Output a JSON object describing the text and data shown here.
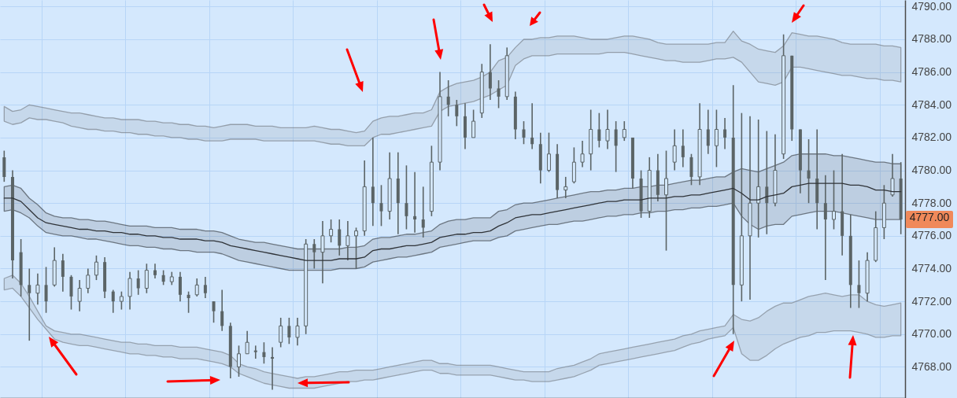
{
  "chart_data": {
    "type": "candlestick",
    "color": "#5b6466",
    "grid": true,
    "tick_labels": "y",
    "categories": [
      null,
      null,
      null,
      null,
      null,
      null,
      null,
      null,
      null,
      null,
      null,
      null,
      null,
      null,
      null,
      null,
      null,
      null,
      null,
      null,
      null,
      null,
      null,
      null,
      null,
      null,
      null,
      null,
      null,
      null,
      null,
      null,
      null,
      null,
      null,
      null,
      null,
      null,
      null,
      null,
      null,
      null,
      null,
      null,
      null,
      null,
      null,
      null,
      null,
      null,
      null,
      null,
      null,
      null,
      null,
      null,
      null,
      null,
      null,
      null,
      null,
      null,
      null,
      null,
      null,
      null,
      null,
      null,
      null,
      null,
      null,
      null,
      null,
      null,
      null,
      null,
      null,
      null,
      null,
      null,
      null,
      null,
      null,
      null,
      null,
      null,
      null,
      null,
      null,
      null,
      null,
      null,
      null,
      null,
      null,
      null,
      null,
      null,
      null,
      null,
      null,
      null,
      null,
      null,
      null,
      null,
      null,
      null
    ],
    "ylim": [
      4766.1,
      4790.4
    ],
    "yticks": [
      {
        "value": 4768,
        "label": "4768.00"
      },
      {
        "value": 4770,
        "label": "4770.00"
      },
      {
        "value": 4772,
        "label": "4772.00"
      },
      {
        "value": 4774,
        "label": "4774.00"
      },
      {
        "value": 4776,
        "label": "4776.00"
      },
      {
        "value": 4778,
        "label": "4778.00"
      },
      {
        "value": 4780,
        "label": "4780.00"
      },
      {
        "value": 4782,
        "label": "4782.00"
      },
      {
        "value": 4784,
        "label": "4784.00"
      },
      {
        "value": 4786,
        "label": "4786.00"
      },
      {
        "value": 4788,
        "label": "4788.00"
      },
      {
        "value": 4790,
        "label": "4790.00"
      }
    ],
    "ohlc": [
      [
        4780.8,
        4781.2,
        4779.3,
        4779.6
      ],
      [
        4779.6,
        4780,
        4773.4,
        4774.5
      ],
      [
        4775,
        4775.8,
        4772.3,
        4773
      ],
      [
        4773,
        4774,
        4769.6,
        4772.5
      ],
      [
        4772.5,
        4773.7,
        4771.8,
        4773
      ],
      [
        4773,
        4774.1,
        4771.3,
        4772
      ],
      [
        4773,
        4775.3,
        4772.9,
        4774.5
      ],
      [
        4774.5,
        4774.9,
        4772.6,
        4773.5
      ],
      [
        4773.5,
        4773.6,
        4771.5,
        4772.3
      ],
      [
        4772,
        4773.3,
        4771.4,
        4772.8
      ],
      [
        4772.8,
        4774,
        4772.5,
        4773.6
      ],
      [
        4773.6,
        4774.8,
        4773.3,
        4774.4
      ],
      [
        4774.4,
        4774.7,
        4772.2,
        4772.6
      ],
      [
        4772.6,
        4772.7,
        4771.3,
        4772
      ],
      [
        4772,
        4772.6,
        4771.5,
        4772.3
      ],
      [
        4772.3,
        4773.8,
        4771.5,
        4773.4
      ],
      [
        4773.4,
        4773.9,
        4772.4,
        4772.8
      ],
      [
        4772.8,
        4774.3,
        4772.5,
        4773.9
      ],
      [
        4773.9,
        4774.3,
        4773.4,
        4773.6
      ],
      [
        4773.6,
        4773.9,
        4773,
        4773.2
      ],
      [
        4773.2,
        4773.8,
        4773,
        4773.5
      ],
      [
        4773.5,
        4773.8,
        4772,
        4772.4
      ],
      [
        4772.4,
        4772.6,
        4771.3,
        4772.2
      ],
      [
        4772.4,
        4773.4,
        4772.3,
        4773
      ],
      [
        4773,
        4773.5,
        4772.2,
        4772.5
      ],
      [
        4772,
        4772,
        4770.7,
        4771.4
      ],
      [
        4771.4,
        4772.7,
        4770.2,
        4770.5
      ],
      [
        4770.5,
        4770.7,
        4767.3,
        4768
      ],
      [
        4768,
        4769.3,
        4767.4,
        4768.8
      ],
      [
        4768.8,
        4770.2,
        4768.8,
        4769.5
      ],
      [
        4769,
        4769.3,
        4768.5,
        4768.9
      ],
      [
        4768.9,
        4769.5,
        4768.2,
        4768.6
      ],
      [
        4768.6,
        4769.2,
        4766.6,
        4768.5
      ],
      [
        4769.5,
        4771,
        4769.2,
        4770.5
      ],
      [
        4770.5,
        4771,
        4769.4,
        4769.8
      ],
      [
        4769.8,
        4771,
        4769.3,
        4770.5
      ],
      [
        4770.5,
        4775.8,
        4770,
        4775.5
      ],
      [
        4775.5,
        4775.8,
        4774,
        4775
      ],
      [
        4775,
        4776.9,
        4773.1,
        4776
      ],
      [
        4776,
        4777,
        4775.6,
        4776.4
      ],
      [
        4776.4,
        4777,
        4774.8,
        4775.4
      ],
      [
        4775.4,
        4776.9,
        4774.5,
        4776
      ],
      [
        4776,
        4776.5,
        4774,
        4776.3
      ],
      [
        4776.3,
        4780.6,
        4776,
        4779
      ],
      [
        4779,
        4782,
        4776.6,
        4778
      ],
      [
        4778,
        4779.1,
        4776.6,
        4777.5
      ],
      [
        4777.5,
        4781.1,
        4777,
        4779.5
      ],
      [
        4779.5,
        4781.1,
        4776.1,
        4778
      ],
      [
        4778,
        4780.3,
        4776.4,
        4777.2
      ],
      [
        4777.2,
        4779.9,
        4776.2,
        4777
      ],
      [
        4777,
        4779,
        4775.9,
        4776.5
      ],
      [
        4777.5,
        4781.5,
        4777.2,
        4780.5
      ],
      [
        4780.5,
        4786,
        4780,
        4784.5
      ],
      [
        4784.5,
        4785.5,
        4783.3,
        4784
      ],
      [
        4784,
        4784.3,
        4782.7,
        4783.3
      ],
      [
        4783.3,
        4784.1,
        4781.3,
        4782
      ],
      [
        4782,
        4783.7,
        4782,
        4783
      ],
      [
        4783.5,
        4786.5,
        4783.2,
        4786
      ],
      [
        4786,
        4787.7,
        4784.3,
        4785
      ],
      [
        4785,
        4785.5,
        4783.8,
        4784.5
      ],
      [
        4784.5,
        4787.5,
        4784.3,
        4787
      ],
      [
        4784.5,
        4784.8,
        4781.9,
        4782.5
      ],
      [
        4782.5,
        4783,
        4781.6,
        4782
      ],
      [
        4782,
        4784.1,
        4781.3,
        4781.6
      ],
      [
        4781.6,
        4782.3,
        4779.2,
        4780
      ],
      [
        4780,
        4782.3,
        4779.9,
        4781
      ],
      [
        4781,
        4781.6,
        4778.3,
        4778.8
      ],
      [
        4778.8,
        4779.6,
        4778.3,
        4779
      ],
      [
        4779.3,
        4781.4,
        4779.2,
        4780.5
      ],
      [
        4780.5,
        4781.8,
        4780.2,
        4781
      ],
      [
        4781,
        4783.7,
        4780,
        4782.5
      ],
      [
        4782.5,
        4783.5,
        4781.4,
        4781.8
      ],
      [
        4781.8,
        4783.7,
        4781.3,
        4782.5
      ],
      [
        4782.5,
        4783,
        4779.9,
        4781.5
      ],
      [
        4782,
        4783,
        4781.8,
        4782.5
      ],
      [
        4782,
        4782,
        4778.9,
        4779.5
      ],
      [
        4779.5,
        4780,
        4777.1,
        4777.5
      ],
      [
        4777.5,
        4780.8,
        4777.1,
        4780
      ],
      [
        4780,
        4781,
        4778.1,
        4778.5
      ],
      [
        4778.5,
        4781.2,
        4775.1,
        4779.5
      ],
      [
        4780.5,
        4782.5,
        4780,
        4781.5
      ],
      [
        4781.5,
        4782.5,
        4780.2,
        4780.8
      ],
      [
        4780.8,
        4781,
        4779.1,
        4779.6
      ],
      [
        4779.6,
        4784.1,
        4779.1,
        4782.5
      ],
      [
        4782.5,
        4783.7,
        4781,
        4781.5
      ],
      [
        4781.5,
        4783.7,
        4780.2,
        4782.5
      ],
      [
        4782.5,
        4783.2,
        4781.3,
        4782
      ],
      [
        4782,
        4785.2,
        4770,
        4773
      ],
      [
        4773,
        4783.5,
        4772,
        4776
      ],
      [
        4776,
        4783.3,
        4772.1,
        4778
      ],
      [
        4778,
        4783.1,
        4775.9,
        4779
      ],
      [
        4779,
        4782.4,
        4776.1,
        4778
      ],
      [
        4778,
        4782.2,
        4777.8,
        4780
      ],
      [
        4781,
        4788.3,
        4780.7,
        4787
      ],
      [
        4787,
        4787,
        4781.8,
        4782.5
      ],
      [
        4782.5,
        4782.5,
        4778.6,
        4780
      ],
      [
        4780,
        4781.9,
        4778,
        4779.5
      ],
      [
        4779.5,
        4782.5,
        4776.4,
        4778
      ],
      [
        4778,
        4779.7,
        4773.3,
        4777
      ],
      [
        4777,
        4780,
        4776.4,
        4777.5
      ],
      [
        4777.5,
        4781,
        4774.8,
        4776
      ],
      [
        4776,
        4777.3,
        4771.6,
        4773
      ],
      [
        4773,
        4774.5,
        4771.6,
        4772.5
      ],
      [
        4772.5,
        4775,
        4772,
        4774.5
      ],
      [
        4774.5,
        4777.5,
        4774.4,
        4776.5
      ],
      [
        4776.5,
        4779.1,
        4775.8,
        4778
      ],
      [
        4778.5,
        4781,
        4778.4,
        4779.5
      ],
      [
        4779.5,
        4780.5,
        4776.1,
        4777
      ]
    ],
    "series": [
      {
        "type": "line",
        "color": "#6f757c",
        "values": [
          null,
          null,
          null,
          null,
          null,
          null,
          null,
          null,
          null,
          null,
          null,
          null,
          null,
          null,
          null,
          null,
          null,
          null,
          null,
          null,
          null,
          null,
          null,
          null,
          null,
          null,
          null,
          null,
          null,
          null,
          null,
          null,
          null,
          null,
          null,
          null,
          null,
          null,
          null,
          null,
          null,
          null,
          null,
          null,
          null,
          null,
          null,
          null,
          null,
          null,
          null,
          null,
          null,
          null,
          null,
          null,
          null,
          null,
          null,
          null,
          null,
          null,
          null,
          null,
          null,
          null,
          null,
          null,
          null,
          null,
          null,
          null,
          null,
          null,
          null,
          null,
          null,
          null,
          null,
          null,
          null,
          null,
          null,
          null,
          null,
          null,
          null,
          null,
          null,
          null,
          null,
          null,
          null,
          null,
          null,
          null,
          null,
          null,
          null,
          null,
          null,
          null,
          null,
          null,
          null,
          null,
          null,
          null
        ],
        "upper": [
          4783.9,
          4783.6,
          4783.7,
          4784.0,
          4783.9,
          4783.8,
          4783.7,
          4783.6,
          4783.5,
          4783.5,
          4783.4,
          4783.3,
          4783.2,
          4783.2,
          4783.1,
          4783.1,
          4783.1,
          4783.0,
          4783.0,
          4782.9,
          4782.9,
          4782.8,
          4782.8,
          4782.7,
          4782.7,
          4782.6,
          4782.7,
          4782.8,
          4782.8,
          4782.8,
          4782.7,
          4782.7,
          4782.7,
          4782.6,
          4782.6,
          4782.6,
          4782.6,
          4782.7,
          4782.6,
          4782.5,
          4782.5,
          4782.4,
          4782.3,
          4782.4,
          4783.0,
          4783.2,
          4783.3,
          4783.3,
          4783.4,
          4783.5,
          4783.5,
          4783.7,
          4784.8,
          4785.1,
          4785.3,
          4785.4,
          4785.5,
          4785.7,
          4786.0,
          4786.7,
          4786.9,
          4787.5,
          4788.0,
          4788.0,
          4788.1,
          4788.1,
          4788.2,
          4788.2,
          4788.2,
          4788.1,
          4788.0,
          4788.0,
          4788.0,
          4788.1,
          4788.2,
          4788.2,
          4788.1,
          4788.0,
          4787.8,
          4787.7,
          4787.7,
          4787.7,
          4787.7,
          4787.7,
          4787.7,
          4787.8,
          4787.8,
          4788.5,
          4787.9,
          4787.7,
          4787.4,
          4787.3,
          4787.2,
          4787.6,
          4788.4,
          4788.3,
          4788.2,
          4788.2,
          4788.1,
          4788.0,
          4787.8,
          4787.7,
          4787.7,
          4787.7,
          4787.7,
          4787.6,
          4787.6,
          4787.5
        ],
        "lower": [
          4783.0,
          4782.8,
          4782.9,
          4783.2,
          4783.1,
          4783.1,
          4783.0,
          4782.9,
          4782.7,
          4782.6,
          4782.5,
          4782.5,
          4782.4,
          4782.4,
          4782.3,
          4782.3,
          4782.2,
          4782.2,
          4782.1,
          4782.1,
          4782.0,
          4782.0,
          4781.9,
          4781.9,
          4781.8,
          4781.8,
          4781.8,
          4781.9,
          4781.9,
          4781.9,
          4781.9,
          4781.8,
          4781.8,
          4781.8,
          4781.8,
          4781.8,
          4781.8,
          4781.8,
          4781.7,
          4781.6,
          4781.6,
          4781.5,
          4781.5,
          4781.5,
          4782.0,
          4782.2,
          4782.2,
          4782.3,
          4782.4,
          4782.5,
          4782.6,
          4782.7,
          4783.6,
          4783.9,
          4784.0,
          4784.1,
          4784.2,
          4784.4,
          4784.6,
          4784.9,
          4785.2,
          4786.4,
          4786.8,
          4787.0,
          4787.0,
          4787.0,
          4787.1,
          4787.1,
          4787.1,
          4787.1,
          4787.1,
          4787.1,
          4787.2,
          4787.2,
          4787.2,
          4787.1,
          4787.0,
          4786.9,
          4786.8,
          4786.7,
          4786.7,
          4786.6,
          4786.6,
          4786.6,
          4786.7,
          4786.8,
          4786.8,
          4786.9,
          4786.6,
          4786.0,
          4785.4,
          4785.3,
          4785.2,
          4785.4,
          4786.3,
          4786.3,
          4786.2,
          4786.1,
          4786.0,
          4785.9,
          4785.8,
          4785.8,
          4785.7,
          4785.6,
          4785.6,
          4785.5,
          4785.5,
          4785.4
        ]
      },
      {
        "type": "line",
        "color": "#2f3338",
        "values": [
          4778.3,
          4778.3,
          4778.1,
          4777.6,
          4777.1,
          4776.8,
          4776.7,
          4776.6,
          4776.5,
          4776.4,
          4776.4,
          4776.3,
          4776.3,
          4776.2,
          4776.2,
          4776.1,
          4776.1,
          4776.0,
          4776.0,
          4775.9,
          4775.9,
          4775.8,
          4775.8,
          4775.8,
          4775.7,
          4775.7,
          4775.6,
          4775.4,
          4775.3,
          4775.2,
          4775.1,
          4775.0,
          4774.9,
          4774.8,
          4774.7,
          4774.6,
          4774.5,
          4774.5,
          4774.5,
          4774.5,
          4774.6,
          4774.6,
          4774.6,
          4774.7,
          4775.1,
          4775.2,
          4775.2,
          4775.3,
          4775.4,
          4775.4,
          4775.5,
          4775.6,
          4775.9,
          4776.0,
          4776.1,
          4776.1,
          4776.2,
          4776.2,
          4776.3,
          4776.6,
          4776.8,
          4777.1,
          4777.2,
          4777.3,
          4777.3,
          4777.4,
          4777.5,
          4777.6,
          4777.7,
          4777.8,
          4777.9,
          4778.0,
          4778.1,
          4778.1,
          4778.2,
          4778.2,
          4778.2,
          4778.3,
          4778.3,
          4778.3,
          4778.4,
          4778.4,
          4778.5,
          4778.5,
          4778.6,
          4778.7,
          4778.8,
          4778.9,
          4778.6,
          4778.2,
          4778.2,
          4778.4,
          4778.5,
          4778.6,
          4779.0,
          4779.1,
          4779.2,
          4779.2,
          4779.2,
          4779.2,
          4779.2,
          4779.1,
          4779.1,
          4779.0,
          4778.8,
          4778.8,
          4778.7,
          4778.7
        ],
        "upper": [
          4779.0,
          4779.1,
          4778.9,
          4778.3,
          4777.9,
          4777.4,
          4777.2,
          4777.1,
          4777.1,
          4777.0,
          4777.0,
          4776.9,
          4776.9,
          4776.8,
          4776.7,
          4776.6,
          4776.6,
          4776.6,
          4776.5,
          4776.5,
          4776.5,
          4776.4,
          4776.4,
          4776.4,
          4776.3,
          4776.3,
          4776.2,
          4776.0,
          4775.8,
          4775.7,
          4775.6,
          4775.6,
          4775.5,
          4775.4,
          4775.3,
          4775.2,
          4775.2,
          4775.2,
          4775.2,
          4775.2,
          4775.2,
          4775.3,
          4775.3,
          4775.4,
          4775.8,
          4775.9,
          4775.9,
          4776.0,
          4776.1,
          4776.1,
          4776.2,
          4776.3,
          4776.7,
          4776.9,
          4777.0,
          4777.0,
          4777.1,
          4777.1,
          4777.1,
          4777.5,
          4777.6,
          4777.9,
          4778.0,
          4778.0,
          4778.1,
          4778.2,
          4778.3,
          4778.4,
          4778.5,
          4778.6,
          4778.7,
          4778.7,
          4778.8,
          4778.8,
          4778.9,
          4778.9,
          4779.0,
          4779.0,
          4779.1,
          4779.1,
          4779.2,
          4779.3,
          4779.4,
          4779.4,
          4779.5,
          4779.6,
          4779.6,
          4779.9,
          4780.1,
          4780.0,
          4779.9,
          4780.1,
          4780.3,
          4780.5,
          4780.9,
          4781.0,
          4781.0,
          4781.0,
          4781.0,
          4780.9,
          4780.9,
          4780.8,
          4780.7,
          4780.6,
          4780.5,
          4780.5,
          4780.4,
          4780.4
        ],
        "lower": [
          4777.5,
          4777.6,
          4777.4,
          4777.1,
          4776.6,
          4776.2,
          4776.1,
          4776.0,
          4776.0,
          4775.9,
          4775.8,
          4775.8,
          4775.7,
          4775.6,
          4775.5,
          4775.4,
          4775.4,
          4775.3,
          4775.3,
          4775.2,
          4775.2,
          4775.1,
          4775.1,
          4775.0,
          4775.0,
          4775.0,
          4774.9,
          4774.7,
          4774.5,
          4774.4,
          4774.3,
          4774.2,
          4774.1,
          4774.0,
          4773.9,
          4773.9,
          4773.9,
          4773.9,
          4773.9,
          4773.9,
          4774.0,
          4774.0,
          4774.0,
          4774.1,
          4774.4,
          4774.5,
          4774.6,
          4774.7,
          4774.7,
          4774.8,
          4774.9,
          4775.0,
          4775.3,
          4775.4,
          4775.5,
          4775.6,
          4775.7,
          4775.7,
          4775.7,
          4775.9,
          4776.0,
          4776.3,
          4776.4,
          4776.5,
          4776.6,
          4776.7,
          4776.7,
          4776.8,
          4776.9,
          4776.9,
          4777.0,
          4777.1,
          4777.2,
          4777.2,
          4777.3,
          4777.3,
          4777.4,
          4777.4,
          4777.5,
          4777.5,
          4777.6,
          4777.6,
          4777.7,
          4777.7,
          4777.8,
          4777.8,
          4777.9,
          4778.0,
          4777.2,
          4776.7,
          4776.4,
          4776.6,
          4776.7,
          4776.7,
          4777.2,
          4777.3,
          4777.4,
          4777.5,
          4777.5,
          4777.5,
          4777.4,
          4777.3,
          4777.2,
          4777.1,
          4777.0,
          4777.0,
          4777.0,
          4777.0
        ]
      },
      {
        "type": "line",
        "color": "#737a82",
        "values": [
          null,
          null,
          null,
          null,
          null,
          null,
          null,
          null,
          null,
          null,
          null,
          null,
          null,
          null,
          null,
          null,
          null,
          null,
          null,
          null,
          null,
          null,
          null,
          null,
          null,
          null,
          null,
          null,
          null,
          null,
          null,
          null,
          null,
          null,
          null,
          null,
          null,
          null,
          null,
          null,
          null,
          null,
          null,
          null,
          null,
          null,
          null,
          null,
          null,
          null,
          null,
          null,
          null,
          null,
          null,
          null,
          null,
          null,
          null,
          null,
          null,
          null,
          null,
          null,
          null,
          null,
          null,
          null,
          null,
          null,
          null,
          null,
          null,
          null,
          null,
          null,
          null,
          null,
          null,
          null,
          null,
          null,
          null,
          null,
          null,
          null,
          null,
          null,
          null,
          null,
          null,
          null,
          null,
          null,
          null,
          null,
          null,
          null,
          null,
          null,
          null,
          null,
          null,
          null,
          null,
          null,
          null,
          null
        ],
        "upper": [
          4773.4,
          4773.6,
          4773.1,
          4772.3,
          4771.4,
          4770.5,
          4770.2,
          4770.1,
          4770.0,
          4770.0,
          4769.9,
          4769.8,
          4769.7,
          4769.6,
          4769.5,
          4769.5,
          4769.4,
          4769.4,
          4769.3,
          4769.3,
          4769.3,
          4769.2,
          4769.2,
          4769.2,
          4769.1,
          4769.0,
          4768.9,
          4768.7,
          4768.2,
          4768.0,
          4767.9,
          4767.7,
          4767.6,
          4767.5,
          4767.4,
          4767.3,
          4767.4,
          4767.4,
          4767.5,
          4767.6,
          4767.7,
          4767.7,
          4767.8,
          4767.8,
          4767.8,
          4767.9,
          4768.0,
          4768.1,
          4768.2,
          4768.3,
          4768.4,
          4768.4,
          4768.2,
          4768.2,
          4768.1,
          4768.1,
          4768.1,
          4768.1,
          4768.1,
          4768.0,
          4767.9,
          4767.8,
          4767.7,
          4767.7,
          4767.7,
          4767.7,
          4767.9,
          4768.0,
          4768.1,
          4768.3,
          4768.5,
          4768.8,
          4768.9,
          4769.0,
          4769.1,
          4769.2,
          4769.3,
          4769.4,
          4769.5,
          4769.6,
          4769.7,
          4769.9,
          4770.0,
          4770.2,
          4770.3,
          4770.4,
          4770.5,
          4771.2,
          4770.9,
          4770.8,
          4771.0,
          4771.4,
          4771.7,
          4771.9,
          4771.9,
          4772.1,
          4772.3,
          4772.4,
          4772.5,
          4772.4,
          4772.3,
          4772.4,
          4772.4,
          4772.0,
          4771.8,
          4771.7,
          4771.8,
          4771.9
        ],
        "lower": [
          4772.7,
          4772.8,
          4772.3,
          4771.6,
          4770.9,
          4770.3,
          4769.7,
          4769.5,
          4769.4,
          4769.3,
          4769.3,
          4769.2,
          4769.1,
          4769.0,
          4768.9,
          4768.8,
          4768.8,
          4768.7,
          4768.7,
          4768.6,
          4768.6,
          4768.5,
          4768.5,
          4768.5,
          4768.4,
          4768.3,
          4768.2,
          4768.0,
          4767.6,
          4767.4,
          4767.2,
          4767.0,
          4766.9,
          4766.8,
          4766.7,
          4766.7,
          4766.7,
          4766.7,
          4766.8,
          4766.9,
          4767.0,
          4767.1,
          4767.1,
          4767.2,
          4767.2,
          4767.3,
          4767.4,
          4767.5,
          4767.6,
          4767.7,
          4767.8,
          4767.8,
          4767.6,
          4767.6,
          4767.5,
          4767.5,
          4767.5,
          4767.5,
          4767.5,
          4767.4,
          4767.3,
          4767.2,
          4767.2,
          4767.1,
          4767.1,
          4767.1,
          4767.2,
          4767.3,
          4767.4,
          4767.6,
          4767.8,
          4768.1,
          4768.2,
          4768.3,
          4768.4,
          4768.5,
          4768.6,
          4768.7,
          4768.8,
          4768.9,
          4769.0,
          4769.2,
          4769.4,
          4769.5,
          4769.7,
          4769.8,
          4769.9,
          4770.4,
          4768.8,
          4768.4,
          4768.4,
          4768.7,
          4769.1,
          4769.4,
          4769.6,
          4769.8,
          4769.9,
          4770.1,
          4770.1,
          4770.2,
          4770.2,
          4770.2,
          4770.1,
          4770.0,
          4769.8,
          4769.8,
          4769.9,
          4769.9
        ]
      }
    ],
    "annotations": [
      "4777.00"
    ]
  }
}
